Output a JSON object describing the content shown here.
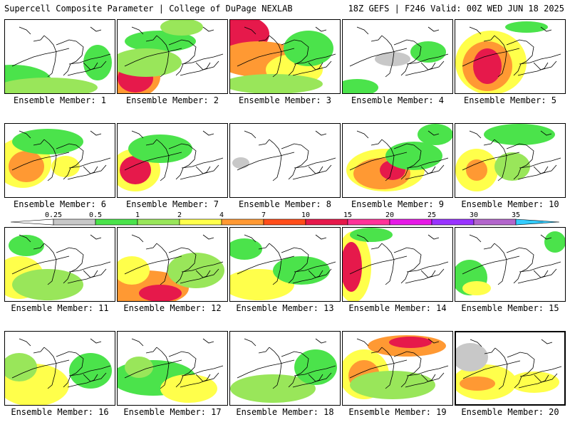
{
  "header": {
    "left": "Supercell Composite Parameter | College of DuPage NEXLAB",
    "right": "18Z GEFS | F246 Valid: 00Z WED JUN 18 2025"
  },
  "legend": {
    "thresholds": [
      "0.25",
      "0.5",
      "1",
      "2",
      "4",
      "7",
      "10",
      "15",
      "20",
      "25",
      "30",
      "35"
    ],
    "colors": [
      "#c8c8c8",
      "#4be34b",
      "#99e65a",
      "#ffff4b",
      "#ff9933",
      "#ff4d1a",
      "#e6194b",
      "#ff3399",
      "#e619e6",
      "#9933ff",
      "#b366cc",
      "#33ccff"
    ]
  },
  "members": [
    {
      "label": "Ensemble Member: 1",
      "blobs": [
        [
          10,
          85,
          55,
          22,
          "#4be34b"
        ],
        [
          60,
          95,
          70,
          14,
          "#99e65a"
        ],
        [
          130,
          60,
          20,
          25,
          "#4be34b"
        ]
      ]
    },
    {
      "label": "Ensemble Member: 2",
      "blobs": [
        [
          20,
          80,
          40,
          30,
          "#ff9933"
        ],
        [
          25,
          82,
          25,
          20,
          "#e6194b"
        ],
        [
          60,
          30,
          50,
          15,
          "#4be34b"
        ],
        [
          90,
          10,
          30,
          12,
          "#99e65a"
        ],
        [
          40,
          60,
          50,
          20,
          "#99e65a"
        ]
      ]
    },
    {
      "label": "Ensemble Member: 3",
      "blobs": [
        [
          20,
          20,
          35,
          25,
          "#e6194b"
        ],
        [
          40,
          55,
          60,
          25,
          "#ff9933"
        ],
        [
          90,
          70,
          40,
          22,
          "#ffff4b"
        ],
        [
          110,
          40,
          35,
          25,
          "#4be34b"
        ],
        [
          60,
          90,
          70,
          14,
          "#99e65a"
        ]
      ]
    },
    {
      "label": "Ensemble Member: 4",
      "blobs": [
        [
          20,
          95,
          30,
          12,
          "#4be34b"
        ],
        [
          120,
          45,
          25,
          15,
          "#4be34b"
        ],
        [
          70,
          55,
          25,
          10,
          "#c8c8c8"
        ]
      ]
    },
    {
      "label": "Ensemble Member: 5",
      "blobs": [
        [
          50,
          60,
          50,
          45,
          "#ffff4b"
        ],
        [
          45,
          65,
          35,
          35,
          "#ff9933"
        ],
        [
          45,
          65,
          20,
          25,
          "#e6194b"
        ],
        [
          100,
          10,
          30,
          8,
          "#4be34b"
        ]
      ]
    },
    {
      "label": "Ensemble Member: 6",
      "blobs": [
        [
          25,
          55,
          40,
          35,
          "#ffff4b"
        ],
        [
          30,
          60,
          25,
          22,
          "#ff9933"
        ],
        [
          60,
          25,
          50,
          18,
          "#4be34b"
        ],
        [
          85,
          60,
          20,
          15,
          "#ffff4b"
        ]
      ]
    },
    {
      "label": "Ensemble Member: 7",
      "blobs": [
        [
          25,
          65,
          35,
          30,
          "#ffff4b"
        ],
        [
          25,
          65,
          22,
          20,
          "#e6194b"
        ],
        [
          60,
          35,
          45,
          20,
          "#4be34b"
        ]
      ]
    },
    {
      "label": "Ensemble Member: 8",
      "blobs": [
        [
          15,
          55,
          12,
          8,
          "#c8c8c8"
        ]
      ]
    },
    {
      "label": "Ensemble Member: 9",
      "blobs": [
        [
          60,
          65,
          55,
          30,
          "#ffff4b"
        ],
        [
          55,
          70,
          40,
          22,
          "#ff9933"
        ],
        [
          70,
          65,
          18,
          14,
          "#e6194b"
        ],
        [
          100,
          45,
          40,
          20,
          "#4be34b"
        ],
        [
          130,
          15,
          25,
          15,
          "#4be34b"
        ]
      ]
    },
    {
      "label": "Ensemble Member: 10",
      "blobs": [
        [
          30,
          65,
          30,
          30,
          "#ffff4b"
        ],
        [
          30,
          65,
          15,
          15,
          "#ff9933"
        ],
        [
          90,
          15,
          50,
          15,
          "#4be34b"
        ],
        [
          80,
          60,
          25,
          20,
          "#99e65a"
        ]
      ]
    },
    {
      "label": "Ensemble Member: 11",
      "blobs": [
        [
          20,
          70,
          35,
          30,
          "#ffff4b"
        ],
        [
          60,
          80,
          50,
          22,
          "#99e65a"
        ],
        [
          30,
          25,
          25,
          15,
          "#4be34b"
        ]
      ]
    },
    {
      "label": "Ensemble Member: 12",
      "blobs": [
        [
          40,
          85,
          60,
          25,
          "#ff9933"
        ],
        [
          60,
          92,
          30,
          12,
          "#e6194b"
        ],
        [
          20,
          60,
          25,
          20,
          "#ffff4b"
        ],
        [
          110,
          60,
          40,
          25,
          "#99e65a"
        ]
      ]
    },
    {
      "label": "Ensemble Member: 13",
      "blobs": [
        [
          40,
          80,
          50,
          22,
          "#ffff4b"
        ],
        [
          20,
          30,
          25,
          15,
          "#4be34b"
        ],
        [
          100,
          60,
          40,
          20,
          "#4be34b"
        ]
      ]
    },
    {
      "label": "Ensemble Member: 14",
      "blobs": [
        [
          15,
          55,
          25,
          50,
          "#ffff4b"
        ],
        [
          12,
          55,
          15,
          35,
          "#e6194b"
        ],
        [
          40,
          10,
          30,
          10,
          "#4be34b"
        ]
      ]
    },
    {
      "label": "Ensemble Member: 15",
      "blobs": [
        [
          20,
          70,
          25,
          25,
          "#4be34b"
        ],
        [
          140,
          20,
          15,
          15,
          "#4be34b"
        ],
        [
          30,
          85,
          20,
          10,
          "#ffff4b"
        ]
      ]
    },
    {
      "label": "Ensemble Member: 16",
      "blobs": [
        [
          40,
          75,
          50,
          30,
          "#ffff4b"
        ],
        [
          20,
          50,
          25,
          20,
          "#99e65a"
        ],
        [
          120,
          55,
          30,
          25,
          "#4be34b"
        ]
      ]
    },
    {
      "label": "Ensemble Member: 17",
      "blobs": [
        [
          50,
          65,
          60,
          25,
          "#4be34b"
        ],
        [
          30,
          50,
          20,
          15,
          "#99e65a"
        ],
        [
          100,
          80,
          40,
          20,
          "#ffff4b"
        ]
      ]
    },
    {
      "label": "Ensemble Member: 18",
      "blobs": [
        [
          60,
          80,
          60,
          20,
          "#99e65a"
        ],
        [
          120,
          50,
          30,
          25,
          "#4be34b"
        ]
      ]
    },
    {
      "label": "Ensemble Member: 19",
      "blobs": [
        [
          30,
          60,
          35,
          35,
          "#ffff4b"
        ],
        [
          30,
          62,
          22,
          22,
          "#ff9933"
        ],
        [
          90,
          20,
          55,
          15,
          "#ff9933"
        ],
        [
          95,
          15,
          30,
          8,
          "#e6194b"
        ],
        [
          70,
          75,
          60,
          20,
          "#99e65a"
        ]
      ]
    },
    {
      "label": "Ensemble Member: 20",
      "blobs": [
        [
          40,
          70,
          45,
          25,
          "#ffff4b"
        ],
        [
          30,
          72,
          25,
          10,
          "#ff9933"
        ],
        [
          110,
          70,
          35,
          15,
          "#ffff4b"
        ],
        [
          20,
          35,
          25,
          20,
          "#c8c8c8"
        ]
      ]
    }
  ]
}
